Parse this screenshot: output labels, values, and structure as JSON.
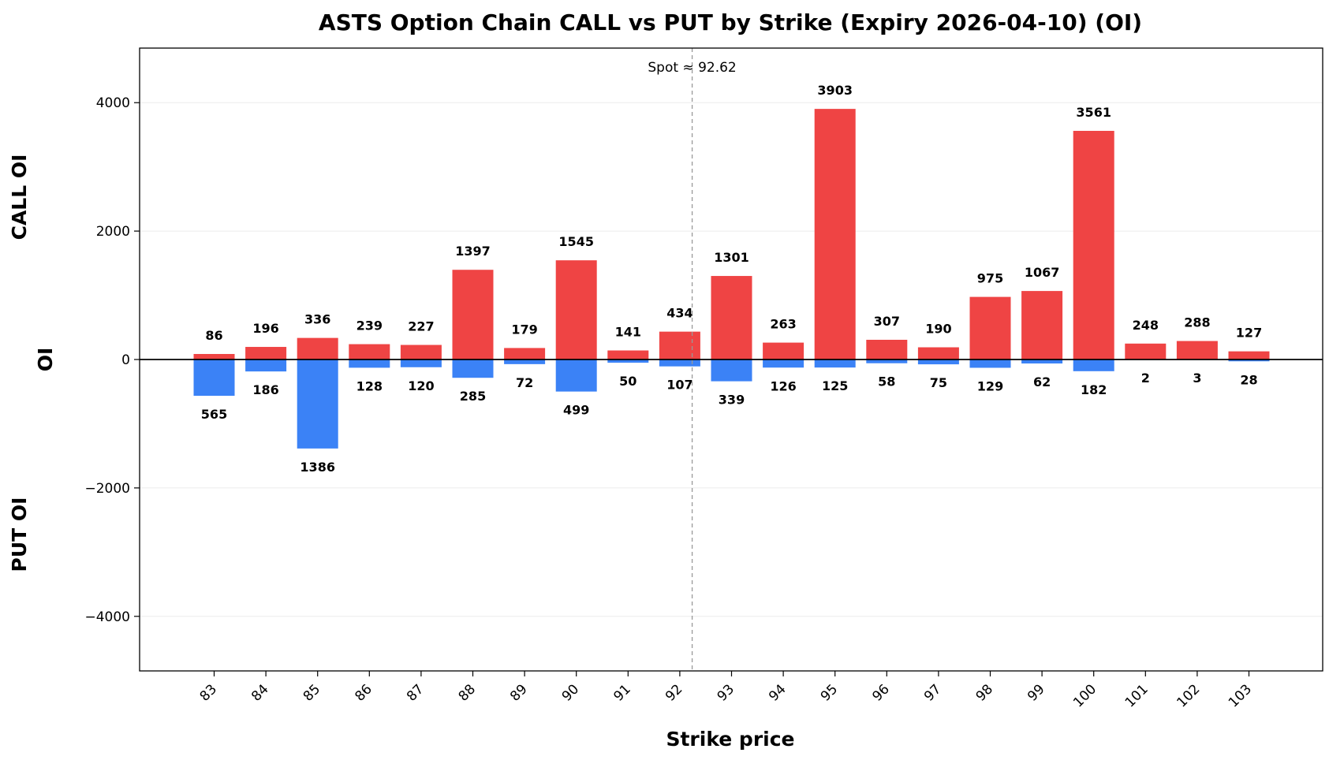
{
  "chart_data": {
    "type": "bar",
    "title": "ASTS Option Chain CALL vs PUT by Strike (Expiry 2026-04-10) (OI)",
    "xlabel": "Strike price",
    "ylabel": "OI",
    "ylabel_top": "CALL OI",
    "ylabel_bottom": "PUT OI",
    "ylim": [
      -4850,
      4850
    ],
    "yticks": [
      -4000,
      -2000,
      0,
      2000,
      4000
    ],
    "ytick_labels": [
      "−4000",
      "−2000",
      "0",
      "2000",
      "4000"
    ],
    "grid": "horizontal",
    "categories": [
      "83",
      "84",
      "85",
      "86",
      "87",
      "88",
      "89",
      "90",
      "91",
      "92",
      "93",
      "94",
      "95",
      "96",
      "97",
      "98",
      "99",
      "100",
      "101",
      "102",
      "103"
    ],
    "series": [
      {
        "color": "#ef4444",
        "values": [
          86,
          196,
          336,
          239,
          227,
          1397,
          179,
          1545,
          141,
          434,
          1301,
          263,
          3903,
          307,
          190,
          975,
          1067,
          3561,
          248,
          288,
          127
        ]
      },
      {
        "color": "#3b82f6",
        "values": [
          -565,
          -186,
          -1386,
          -128,
          -120,
          -285,
          -72,
          -499,
          -50,
          -107,
          -339,
          -126,
          -125,
          -58,
          -75,
          -129,
          -62,
          -182,
          -2,
          -3,
          -28
        ]
      }
    ],
    "put_labels": [
      "565",
      "186",
      "1386",
      "128",
      "120",
      "285",
      "72",
      "499",
      "50",
      "107",
      "339",
      "126",
      "125",
      "58",
      "75",
      "129",
      "62",
      "182",
      "2",
      "3",
      "28"
    ],
    "spot": {
      "value": 92.62,
      "label": "Spot ≈ 92.62"
    }
  }
}
